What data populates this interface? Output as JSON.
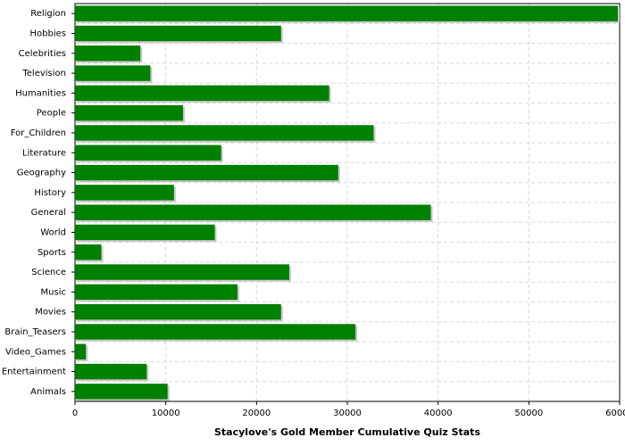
{
  "chart_data": {
    "type": "barh",
    "title": "Stacylove's Gold Member Cumulative Quiz Stats",
    "categories": [
      "Religion",
      "Hobbies",
      "Celebrities",
      "Television",
      "Humanities",
      "People",
      "For_Children",
      "Literature",
      "Geography",
      "History",
      "General",
      "World",
      "Sports",
      "Science",
      "Music",
      "Movies",
      "Brain_Teasers",
      "Video_Games",
      "Entertainment",
      "Animals"
    ],
    "values": [
      59800,
      22700,
      7200,
      8300,
      28000,
      11900,
      32900,
      16100,
      29000,
      10900,
      39200,
      15400,
      2900,
      23600,
      17900,
      22700,
      30900,
      1200,
      7900,
      10200
    ],
    "color": "#008000",
    "xlim": [
      0,
      60000
    ],
    "xticks": [
      0,
      10000,
      20000,
      30000,
      40000,
      50000,
      60000
    ],
    "grid": true
  }
}
